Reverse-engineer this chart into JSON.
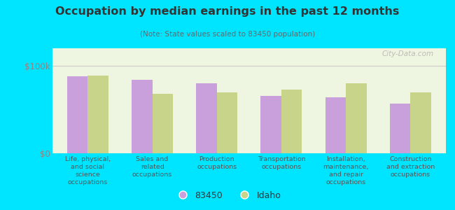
{
  "title": "Occupation by median earnings in the past 12 months",
  "subtitle": "(Note: State values scaled to 83450 population)",
  "categories": [
    "Life, physical,\nand social\nscience\noccupations",
    "Sales and\nrelated\noccupations",
    "Production\noccupations",
    "Transportation\noccupations",
    "Installation,\nmaintenance,\nand repair\noccupations",
    "Construction\nand extraction\noccupations"
  ],
  "values_83450": [
    88000,
    84000,
    80000,
    66000,
    64000,
    57000
  ],
  "values_idaho": [
    89000,
    68000,
    70000,
    73000,
    80000,
    70000
  ],
  "color_83450": "#c9a0dc",
  "color_idaho": "#c8d48a",
  "ylim": [
    0,
    120000
  ],
  "ytick_pos": [
    0,
    100000
  ],
  "ytick_labels": [
    "$0",
    "$100k"
  ],
  "background_color": "#eef5e0",
  "outer_background": "#00e5ff",
  "bar_width": 0.32,
  "legend_label_83450": "83450",
  "legend_label_idaho": "Idaho",
  "watermark": "City-Data.com"
}
